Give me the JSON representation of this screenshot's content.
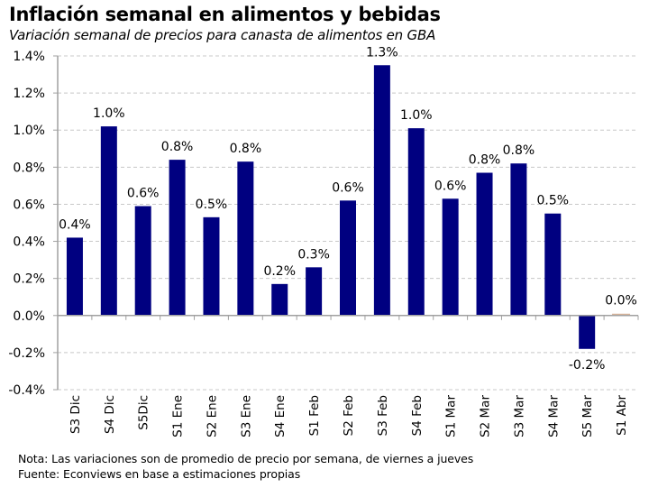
{
  "header": {
    "title": "Inflación semanal en alimentos y bebidas",
    "subtitle": "Variación semanal de precios para canasta de alimentos en GBA"
  },
  "footer": {
    "note": "Nota: Las variaciones son de promedio de precio por semana, de viernes a jueves",
    "source": "Fuente: Econviews en base a estimaciones propias"
  },
  "colors": {
    "bar": "#000080",
    "bar_highlight": "#d8b49a",
    "grid": "#c8c8c8",
    "axis": "#a0a0a0"
  },
  "chart_data": {
    "type": "bar",
    "title": "Inflación semanal en alimentos y bebidas",
    "subtitle": "Variación semanal de precios para canasta de alimentos en GBA",
    "xlabel": "",
    "ylabel": "",
    "ylim": [
      -0.4,
      1.4
    ],
    "yticks": [
      -0.4,
      -0.2,
      0.0,
      0.2,
      0.4,
      0.6,
      0.8,
      1.0,
      1.2,
      1.4
    ],
    "ytick_labels": [
      "-0.4%",
      "-0.2%",
      "0.0%",
      "0.2%",
      "0.4%",
      "0.6%",
      "0.8%",
      "1.0%",
      "1.2%",
      "1.4%"
    ],
    "grid": true,
    "legend": "none",
    "categories": [
      "S3 Dic",
      "S4 Dic",
      "S5Dic",
      "S1 Ene",
      "S2 Ene",
      "S3 Ene",
      "S4 Ene",
      "S1 Feb",
      "S2 Feb",
      "S3 Feb",
      "S4 Feb",
      "S1 Mar",
      "S2 Mar",
      "S3 Mar",
      "S4 Mar",
      "S5 Mar",
      "S1 Abr"
    ],
    "values": [
      0.42,
      1.02,
      0.59,
      0.84,
      0.53,
      0.83,
      0.17,
      0.26,
      0.62,
      1.35,
      1.01,
      0.63,
      0.77,
      0.82,
      0.55,
      -0.18,
      0.01
    ],
    "data_labels": [
      "0.4%",
      "1.0%",
      "0.6%",
      "0.8%",
      "0.5%",
      "0.8%",
      "0.2%",
      "0.3%",
      "0.6%",
      "1.3%",
      "1.0%",
      "0.6%",
      "0.8%",
      "0.8%",
      "0.5%",
      "-0.2%",
      "0.0%"
    ],
    "highlight_index": 16
  }
}
